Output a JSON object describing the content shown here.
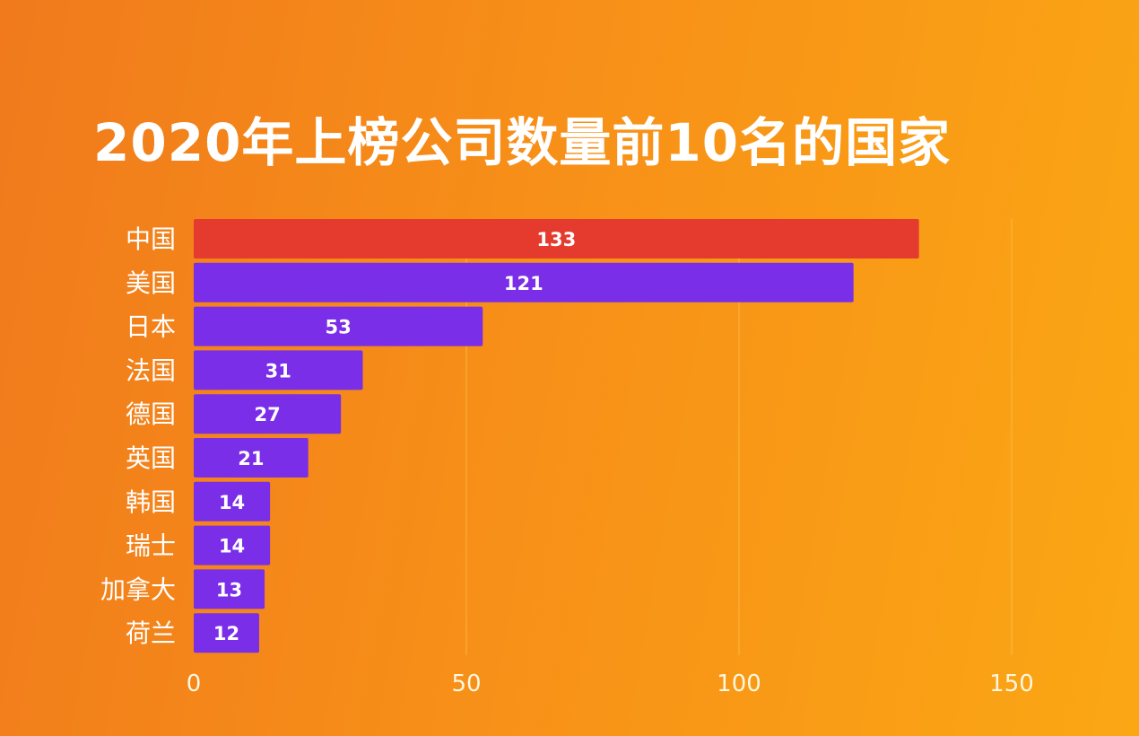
{
  "chart_data": {
    "type": "bar",
    "orientation": "horizontal",
    "title": "2020年上榜公司数量前10名的国家",
    "categories": [
      "中国",
      "美国",
      "日本",
      "法国",
      "德国",
      "英国",
      "韩国",
      "瑞士",
      "加拿大",
      "荷兰"
    ],
    "values": [
      133,
      121,
      53,
      31,
      27,
      21,
      14,
      14,
      13,
      12
    ],
    "xlim": [
      0,
      150
    ],
    "xticks": [
      0,
      50,
      100,
      150
    ],
    "grid": true,
    "data_labels": true,
    "colors": {
      "highlight": "#e53b2f",
      "bar": "#7a2ee8",
      "background_left": "#f07a1c",
      "background_right": "#fba714",
      "text": "#ffffff",
      "grid": "#fbc04a"
    }
  }
}
